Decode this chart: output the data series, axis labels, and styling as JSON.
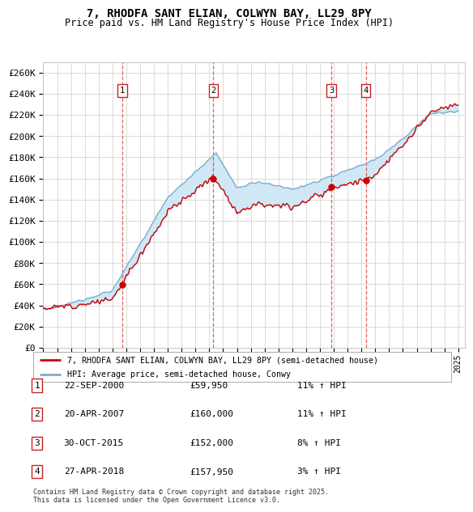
{
  "title1": "7, RHODFA SANT ELIAN, COLWYN BAY, LL29 8PY",
  "title2": "Price paid vs. HM Land Registry's House Price Index (HPI)",
  "ylabel_ticks": [
    "£0",
    "£20K",
    "£40K",
    "£60K",
    "£80K",
    "£100K",
    "£120K",
    "£140K",
    "£160K",
    "£180K",
    "£200K",
    "£220K",
    "£240K",
    "£260K"
  ],
  "ytick_values": [
    0,
    20000,
    40000,
    60000,
    80000,
    100000,
    120000,
    140000,
    160000,
    180000,
    200000,
    220000,
    240000,
    260000
  ],
  "legend_line1": "7, RHODFA SANT ELIAN, COLWYN BAY, LL29 8PY (semi-detached house)",
  "legend_line2": "HPI: Average price, semi-detached house, Conwy",
  "transactions": [
    {
      "num": 1,
      "date_str": "2000-09-22",
      "year": 2000.72,
      "price": 59950
    },
    {
      "num": 2,
      "date_str": "2007-04-20",
      "year": 2007.3,
      "price": 160000
    },
    {
      "num": 3,
      "date_str": "2015-10-30",
      "year": 2015.83,
      "price": 152000
    },
    {
      "num": 4,
      "date_str": "2018-04-27",
      "year": 2018.32,
      "price": 157950
    }
  ],
  "table_rows": [
    [
      "1",
      "22-SEP-2000",
      "£59,950",
      "11% ↑ HPI"
    ],
    [
      "2",
      "20-APR-2007",
      "£160,000",
      "11% ↑ HPI"
    ],
    [
      "3",
      "30-OCT-2015",
      "£152,000",
      "8% ↑ HPI"
    ],
    [
      "4",
      "27-APR-2018",
      "£157,950",
      "3% ↑ HPI"
    ]
  ],
  "footer": "Contains HM Land Registry data © Crown copyright and database right 2025.\nThis data is licensed under the Open Government Licence v3.0.",
  "red_color": "#cc0000",
  "blue_color": "#7aadcc",
  "fill_color": "#d0e8f5",
  "grid_color": "#cccccc",
  "background_color": "#ffffff",
  "box_color": "#cc2222"
}
